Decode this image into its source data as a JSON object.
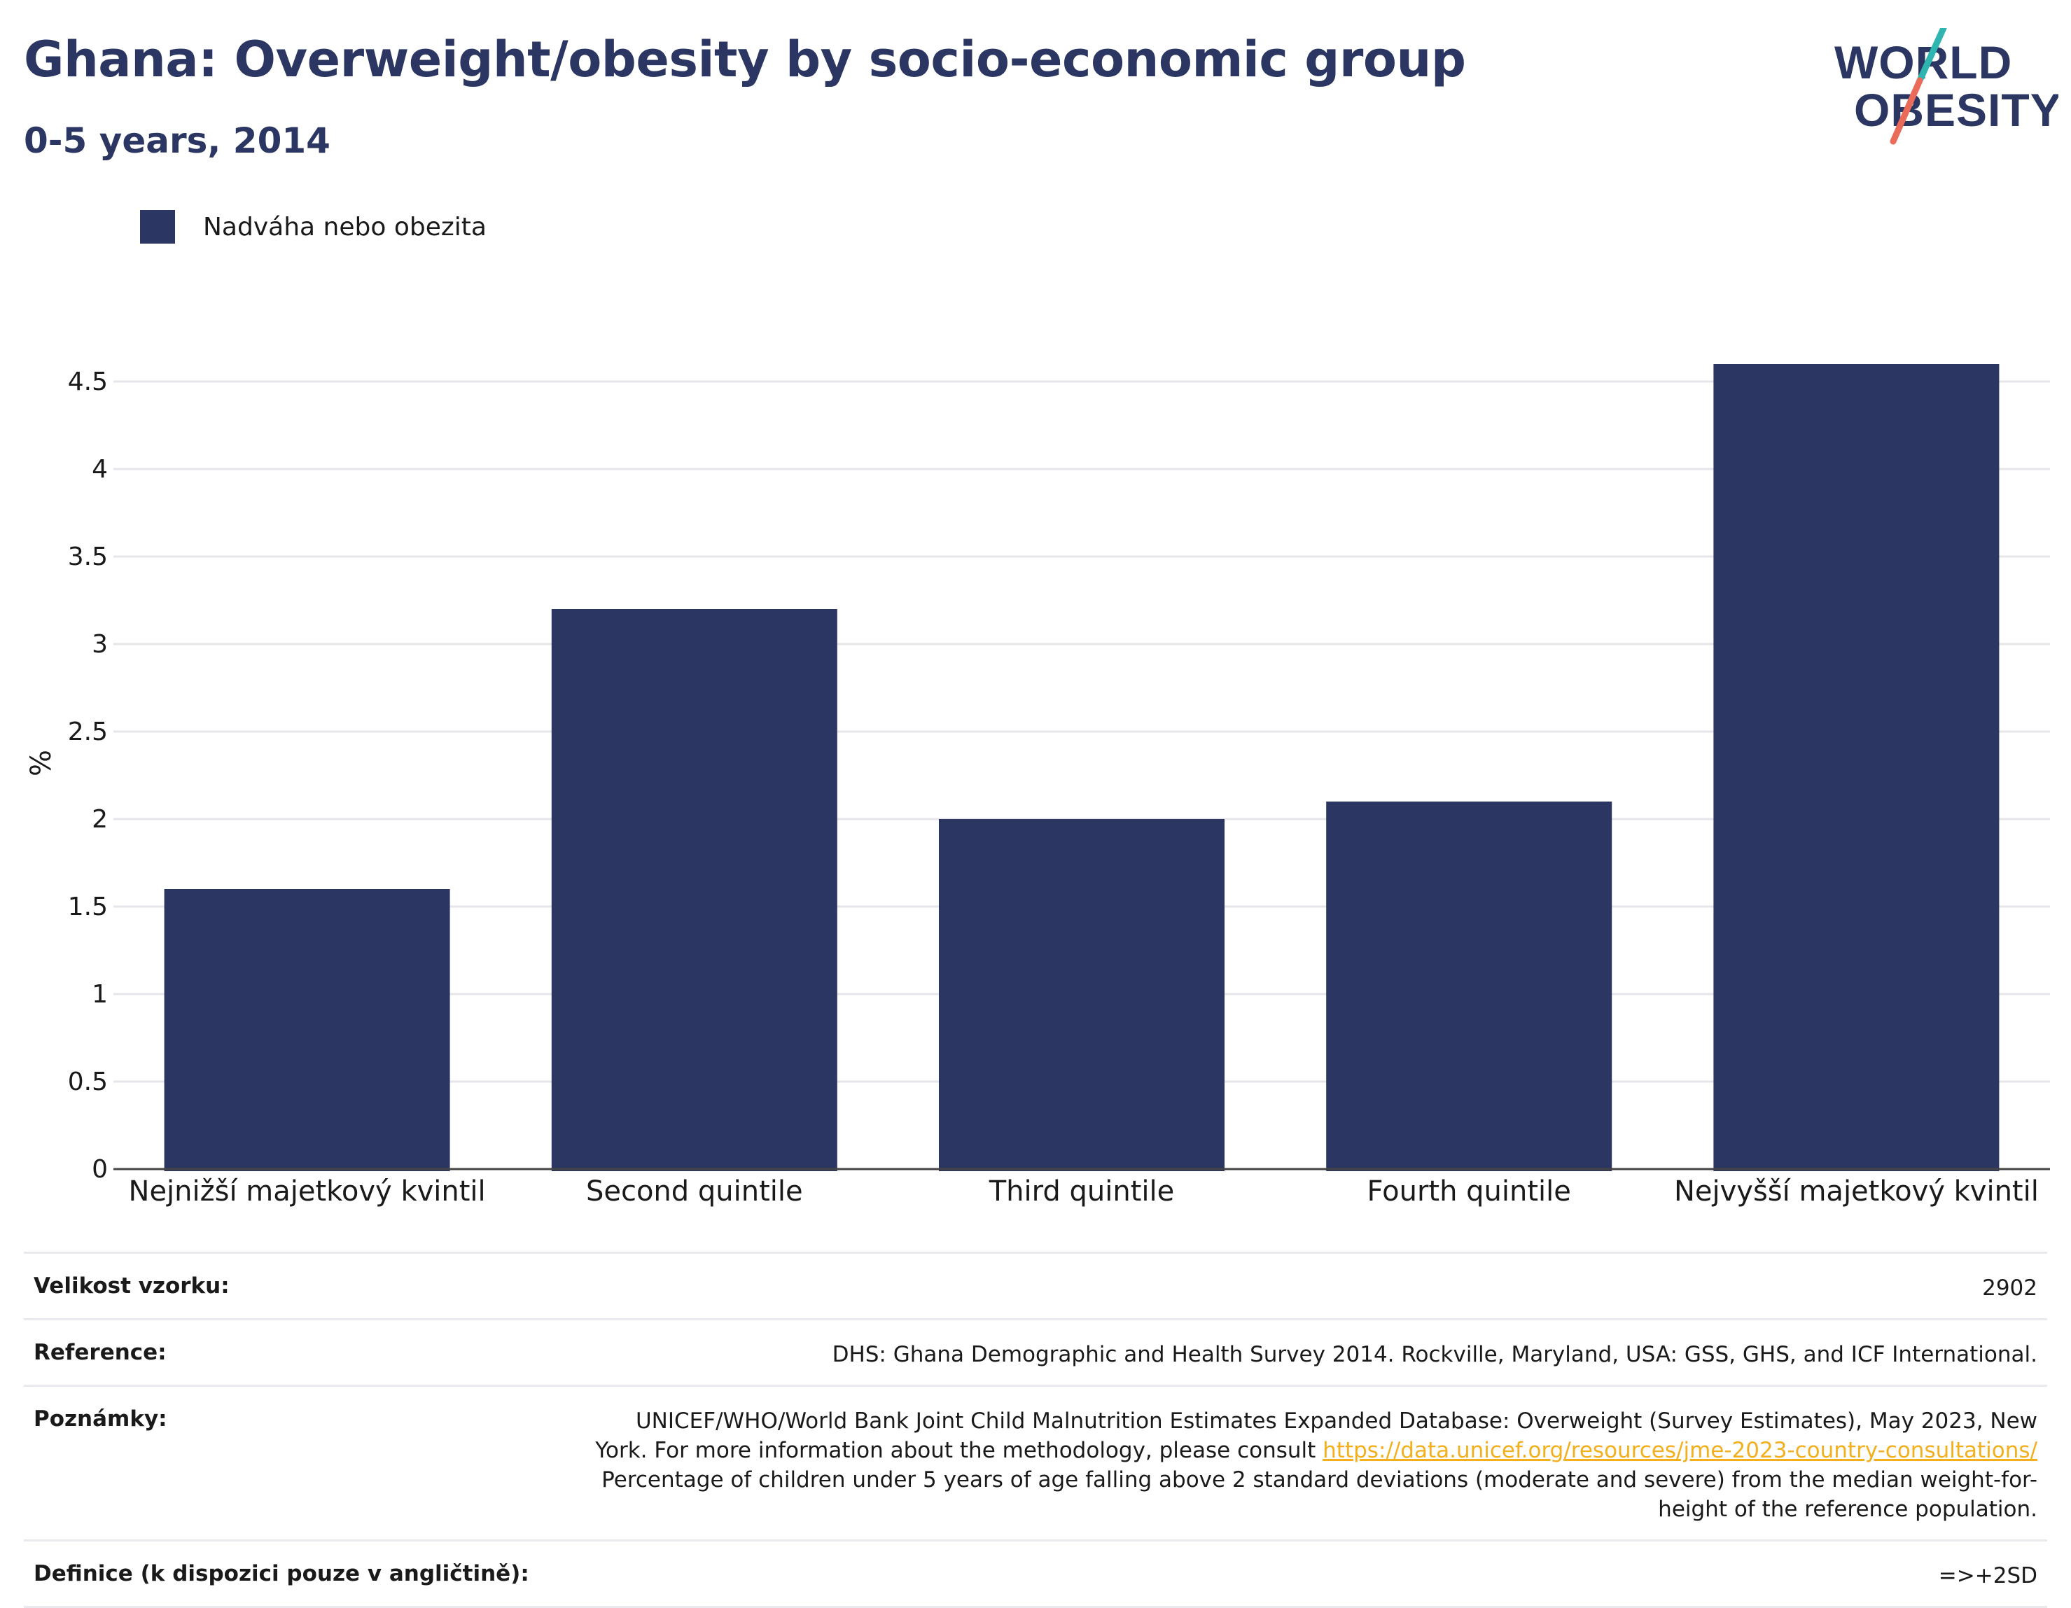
{
  "header": {
    "title": "Ghana: Overweight/obesity by socio-economic group",
    "subtitle": "0-5 years, 2014"
  },
  "logo": {
    "line1": "WORLD",
    "line2": "OBESITY"
  },
  "colors": {
    "bar": "#2b3663",
    "title": "#2b3663",
    "link": "#f2b01e",
    "logo_teal": "#2fb5b0",
    "logo_coral": "#ea6b5a"
  },
  "chart_data": {
    "type": "bar",
    "categories": [
      "Nejnižší majetkový kvintil",
      "Second quintile",
      "Third quintile",
      "Fourth quintile",
      "Nejvyšší majetkový kvintil"
    ],
    "series": [
      {
        "name": "Nadváha nebo obezita",
        "values": [
          1.6,
          3.2,
          2.0,
          2.1,
          4.6
        ]
      }
    ],
    "ylabel": "%",
    "ylim": [
      0,
      4.6
    ],
    "yticks": [
      0,
      0.5,
      1,
      1.5,
      2,
      2.5,
      3,
      3.5,
      4,
      4.5
    ],
    "ytick_labels": [
      "0",
      "0.5",
      "1",
      "1.5",
      "2",
      "2.5",
      "3",
      "3.5",
      "4",
      "4.5"
    ],
    "grid": true,
    "legend": "top-left"
  },
  "meta": {
    "sample_label": "Velikost vzorku:",
    "sample_value": "2902",
    "reference_label": "Reference:",
    "reference_value": "DHS: Ghana Demographic and Health Survey 2014. Rockville, Maryland, USA: GSS, GHS, and ICF International.",
    "notes_label": "Poznámky:",
    "notes_text_1": "UNICEF/WHO/World Bank Joint Child Malnutrition Estimates Expanded Database: Overweight (Survey Estimates), May 2023, New York. For more information about the methodology, please consult",
    "notes_link": "https://data.unicef.org/resources/jme-2023-country-consultations/",
    "notes_text_2": "Percentage of children under 5 years of age falling above 2 standard deviations (moderate and severe) from the median weight-for-height of the reference population.",
    "definition_label": "Definice (k dispozici pouze v angličtině):",
    "definition_value": "=>+2SD"
  }
}
